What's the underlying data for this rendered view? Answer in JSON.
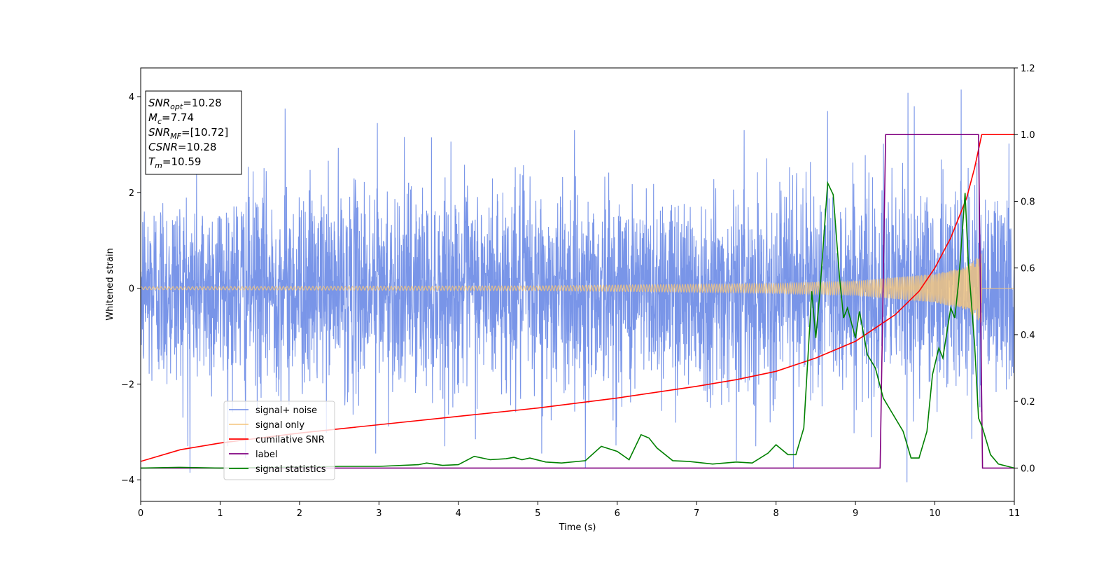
{
  "chart_data": {
    "type": "line",
    "title": "",
    "xlabel": "Time (s)",
    "ylabel": "Whitened strain",
    "y2label": "",
    "xlim": [
      0,
      11
    ],
    "ylim": [
      -4.45,
      4.6
    ],
    "y2lim": [
      -0.1,
      1.2
    ],
    "x_ticks": [
      "0",
      "1",
      "2",
      "3",
      "4",
      "5",
      "6",
      "7",
      "8",
      "9",
      "10",
      "11"
    ],
    "y_ticks": [
      "−4",
      "−2",
      "0",
      "2",
      "4"
    ],
    "y2_ticks": [
      "0.0",
      "0.2",
      "0.4",
      "0.6",
      "0.8",
      "1.0",
      "1.2"
    ],
    "legend_position": "lower-left",
    "annotation": {
      "lines": [
        {
          "sym": "SNR",
          "sub": "opt",
          "value": "=10.28"
        },
        {
          "sym": "M",
          "sub": "c",
          "value": "=7.74"
        },
        {
          "sym": "SNR",
          "sub": "MF",
          "value": "=[10.72]"
        },
        {
          "sym": "CSNR",
          "sub": "",
          "value": "=10.28"
        },
        {
          "sym": "T",
          "sub": "m",
          "value": "=10.59"
        }
      ]
    },
    "series": [
      {
        "name": "signal+ noise",
        "axis": "left",
        "color": "#6a89e6",
        "description_of_shape": "dense gaussian noise, sd about 1.05, spanning 0 to 11 s",
        "noise_sd": 1.05,
        "peaks": [
          [
            1.82,
            3.75
          ],
          [
            9.66,
            4.08
          ],
          [
            10.33,
            4.15
          ],
          [
            9.74,
            3.8
          ],
          [
            8.65,
            3.7
          ],
          [
            2.98,
            3.45
          ],
          [
            0.62,
            -3.85
          ],
          [
            9.65,
            -4.05
          ],
          [
            8.22,
            -3.75
          ],
          [
            5.6,
            -3.75
          ],
          [
            7.5,
            -3.6
          ],
          [
            1.32,
            -3.55
          ],
          [
            2.96,
            -3.45
          ],
          [
            5.05,
            -3.45
          ]
        ]
      },
      {
        "name": "signal only",
        "axis": "left",
        "color": "#f5c57a",
        "description_of_shape": "chirp with growing amplitude ending at merger time",
        "envelope": [
          [
            0,
            0.03
          ],
          [
            5,
            0.05
          ],
          [
            8,
            0.1
          ],
          [
            9,
            0.15
          ],
          [
            10,
            0.3
          ],
          [
            10.4,
            0.45
          ],
          [
            10.59,
            0.75
          ]
        ],
        "end_time": 10.59
      },
      {
        "name": "cumilative SNR",
        "axis": "right",
        "color": "#ff0000",
        "x": [
          0,
          0.5,
          1,
          2,
          3,
          4,
          5,
          6,
          7,
          7.5,
          8,
          8.5,
          9,
          9.5,
          9.8,
          10,
          10.2,
          10.4,
          10.5,
          10.59,
          10.7,
          11
        ],
        "values": [
          0.02,
          0.055,
          0.075,
          0.105,
          0.13,
          0.155,
          0.18,
          0.21,
          0.245,
          0.265,
          0.29,
          0.33,
          0.38,
          0.46,
          0.53,
          0.6,
          0.69,
          0.81,
          0.9,
          1.0,
          1.0,
          1.0
        ]
      },
      {
        "name": "label",
        "axis": "right",
        "color": "#800080",
        "x": [
          0,
          9.31,
          9.38,
          10.55,
          10.6,
          11
        ],
        "values": [
          0,
          0,
          1,
          1,
          0,
          0
        ]
      },
      {
        "name": "signal statistics",
        "axis": "right",
        "color": "#008000",
        "x": [
          0,
          0.5,
          1,
          2,
          2.5,
          3,
          3.5,
          3.6,
          3.8,
          4,
          4.2,
          4.4,
          4.6,
          4.7,
          4.8,
          4.9,
          5.1,
          5.3,
          5.6,
          5.8,
          6.0,
          6.15,
          6.3,
          6.4,
          6.5,
          6.7,
          6.9,
          7.2,
          7.5,
          7.7,
          7.9,
          8.0,
          8.15,
          8.25,
          8.35,
          8.45,
          8.5,
          8.55,
          8.65,
          8.72,
          8.8,
          8.85,
          8.9,
          9.0,
          9.05,
          9.15,
          9.25,
          9.35,
          9.45,
          9.6,
          9.7,
          9.8,
          9.9,
          9.97,
          10.05,
          10.1,
          10.2,
          10.25,
          10.3,
          10.38,
          10.42,
          10.5,
          10.55,
          10.6,
          10.7,
          10.8,
          11
        ],
        "values": [
          0,
          0.002,
          0,
          0.003,
          0.005,
          0.005,
          0.01,
          0.015,
          0.008,
          0.01,
          0.035,
          0.025,
          0.028,
          0.032,
          0.025,
          0.03,
          0.018,
          0.015,
          0.022,
          0.065,
          0.05,
          0.025,
          0.1,
          0.09,
          0.06,
          0.022,
          0.02,
          0.012,
          0.018,
          0.015,
          0.045,
          0.07,
          0.04,
          0.04,
          0.12,
          0.53,
          0.39,
          0.52,
          0.855,
          0.82,
          0.57,
          0.45,
          0.48,
          0.39,
          0.47,
          0.34,
          0.3,
          0.21,
          0.17,
          0.11,
          0.03,
          0.03,
          0.11,
          0.28,
          0.36,
          0.33,
          0.48,
          0.45,
          0.56,
          0.825,
          0.62,
          0.37,
          0.15,
          0.12,
          0.04,
          0.012,
          0
        ]
      }
    ]
  }
}
